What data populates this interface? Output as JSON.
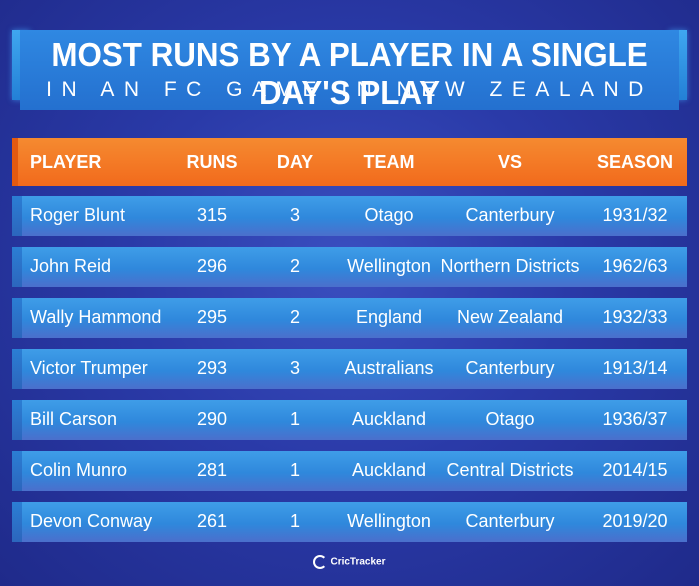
{
  "title": {
    "main": "MOST RUNS BY A PLAYER IN A SINGLE DAY'S PLAY",
    "sub": "IN AN FC GAME IN NEW ZEALAND"
  },
  "table": {
    "headers": [
      "PLAYER",
      "RUNS",
      "DAY",
      "TEAM",
      "VS",
      "SEASON"
    ],
    "rows": [
      [
        "Roger Blunt",
        "315",
        "3",
        "Otago",
        "Canterbury",
        "1931/32"
      ],
      [
        "John Reid",
        "296",
        "2",
        "Wellington",
        "Northern Districts",
        "1962/63"
      ],
      [
        "Wally Hammond",
        "295",
        "2",
        "England",
        "New Zealand",
        "1932/33"
      ],
      [
        "Victor Trumper",
        "293",
        "3",
        "Australians",
        "Canterbury",
        "1913/14"
      ],
      [
        "Bill Carson",
        "290",
        "1",
        "Auckland",
        "Otago",
        "1936/37"
      ],
      [
        "Colin Munro",
        "281",
        "1",
        "Auckland",
        "Central Districts",
        "2014/15"
      ],
      [
        "Devon Conway",
        "261",
        "1",
        "Wellington",
        "Canterbury",
        "2019/20"
      ]
    ]
  },
  "footer": {
    "logo_text": "CricTracker",
    "logo_icon": "crictracker-logo-icon"
  },
  "colors": {
    "background": "#2a3aa8",
    "title_bar": "#2a7cd8",
    "header_row": "#f47a24",
    "data_row": "#3b8fe0"
  }
}
